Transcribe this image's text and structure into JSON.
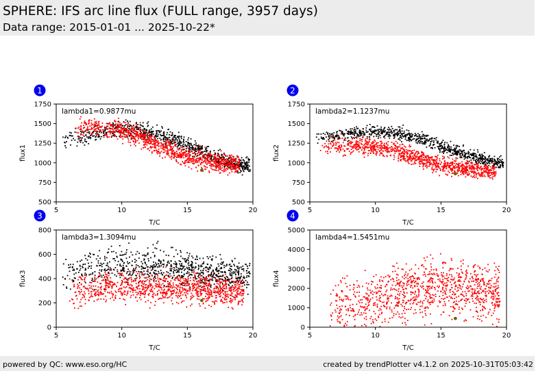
{
  "header": {
    "title": "SPHERE: IFS arc line flux (FULL range, 3957 days)",
    "subtitle": "Data range: 2015-01-01 ... 2025-10-22*"
  },
  "footer": {
    "left": "powered by QC: www.eso.org/HC",
    "right": "created by trendPlotter v4.1.2 on 2025-10-31T05:03:42"
  },
  "colors": {
    "black": "#000000",
    "red": "#ff0000",
    "badge": "#0000ee",
    "latest": "#666600"
  },
  "chart_data": [
    {
      "type": "scatter",
      "index": "1",
      "label": "lambda1=0.9877mu",
      "xlabel": "T/C",
      "ylabel": "flux1",
      "xlim": [
        5,
        20
      ],
      "ylim": [
        500,
        1750
      ],
      "xticks": [
        5,
        10,
        15,
        20
      ],
      "yticks": [
        500,
        750,
        1000,
        1250,
        1500,
        1750
      ],
      "series": [
        {
          "name": "black",
          "color": "#000000",
          "trend": [
            [
              6,
              1300
            ],
            [
              10,
              1430
            ],
            [
              12,
              1390
            ],
            [
              14,
              1290
            ],
            [
              16,
              1150
            ],
            [
              18,
              1020
            ],
            [
              19.5,
              960
            ]
          ],
          "spread": 90,
          "x_range": [
            5.5,
            19.8
          ],
          "n": 850
        },
        {
          "name": "red",
          "color": "#ff0000",
          "trend": [
            [
              6.5,
              1450
            ],
            [
              9,
              1440
            ],
            [
              11,
              1370
            ],
            [
              13,
              1200
            ],
            [
              15,
              1070
            ],
            [
              17,
              1010
            ],
            [
              19,
              980
            ]
          ],
          "spread": 110,
          "x_range": [
            6.5,
            19
          ],
          "n": 1050
        }
      ],
      "latest": {
        "x": 16.1,
        "y": 905
      }
    },
    {
      "type": "scatter",
      "index": "2",
      "label": "lambda2=1.1237mu",
      "xlabel": "T/C",
      "ylabel": "flux2",
      "xlim": [
        5,
        20
      ],
      "ylim": [
        500,
        1750
      ],
      "xticks": [
        5,
        10,
        15,
        20
      ],
      "yticks": [
        500,
        750,
        1000,
        1250,
        1500,
        1750
      ],
      "series": [
        {
          "name": "black",
          "color": "#000000",
          "trend": [
            [
              6,
              1330
            ],
            [
              10,
              1400
            ],
            [
              12,
              1370
            ],
            [
              14,
              1280
            ],
            [
              16,
              1150
            ],
            [
              18,
              1050
            ],
            [
              19.5,
              1000
            ]
          ],
          "spread": 70,
          "x_range": [
            5.5,
            19.8
          ],
          "n": 850
        },
        {
          "name": "red",
          "color": "#ff0000",
          "trend": [
            [
              6,
              1210
            ],
            [
              9,
              1220
            ],
            [
              11,
              1180
            ],
            [
              13,
              1080
            ],
            [
              15,
              970
            ],
            [
              17,
              920
            ],
            [
              19,
              880
            ]
          ],
          "spread": 95,
          "x_range": [
            5.8,
            19.2
          ],
          "n": 1050
        }
      ],
      "latest": {
        "x": 16.1,
        "y": 860
      }
    },
    {
      "type": "scatter",
      "index": "3",
      "label": "lambda3=1.3094mu",
      "xlabel": "T/C",
      "ylabel": "flux3",
      "xlim": [
        5,
        20
      ],
      "ylim": [
        0,
        800
      ],
      "xticks": [
        5,
        10,
        15,
        20
      ],
      "yticks": [
        0,
        200,
        400,
        600,
        800
      ],
      "series": [
        {
          "name": "black",
          "color": "#000000",
          "trend": [
            [
              6,
              450
            ],
            [
              10,
              520
            ],
            [
              13,
              500
            ],
            [
              16,
              470
            ],
            [
              19,
              410
            ]
          ],
          "spread": 130,
          "x_range": [
            5.5,
            19.8
          ],
          "n": 850
        },
        {
          "name": "red",
          "color": "#ff0000",
          "trend": [
            [
              6,
              290
            ],
            [
              10,
              340
            ],
            [
              13,
              330
            ],
            [
              16,
              320
            ],
            [
              19,
              290
            ]
          ],
          "spread": 110,
          "x_range": [
            6,
            19.3
          ],
          "n": 1050
        }
      ],
      "latest": {
        "x": 16.1,
        "y": 220
      }
    },
    {
      "type": "scatter",
      "index": "4",
      "label": "lambda4=1.5451mu",
      "xlabel": "T/C",
      "ylabel": "flux4",
      "xlim": [
        5,
        20
      ],
      "ylim": [
        0,
        5000
      ],
      "xticks": [
        5,
        10,
        15,
        20
      ],
      "yticks": [
        0,
        1000,
        2000,
        3000,
        4000,
        5000
      ],
      "series": [
        {
          "name": "red",
          "color": "#ff0000",
          "trend": [
            [
              6.5,
              800
            ],
            [
              10,
              1500
            ],
            [
              13,
              2000
            ],
            [
              15,
              2100
            ],
            [
              17,
              1900
            ],
            [
              19,
              1700
            ]
          ],
          "spread": 1300,
          "x_range": [
            6.5,
            19.5
          ],
          "n": 1100
        }
      ],
      "latest": {
        "x": 16.1,
        "y": 450
      }
    }
  ]
}
